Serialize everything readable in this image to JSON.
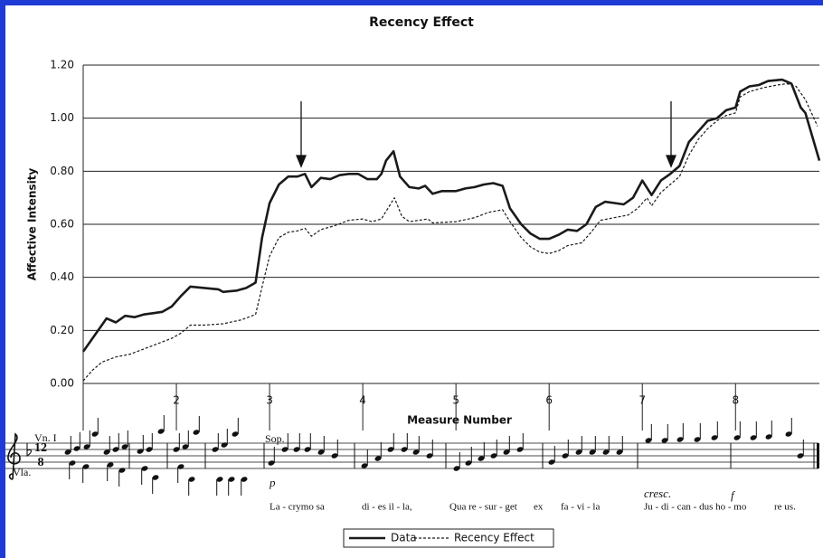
{
  "chart_data": {
    "type": "line",
    "title": "Recency Effect",
    "x_label": "Measure Number",
    "y_label": "Affective Intensity",
    "xlim": [
      1,
      8.9
    ],
    "xticks": [
      2,
      3,
      4,
      5,
      6,
      7,
      8
    ],
    "ylim": [
      0,
      1.2
    ],
    "yticks": [
      {
        "value": 0,
        "label": "0.00"
      },
      {
        "value": 0.2,
        "label": "0.20"
      },
      {
        "value": 0.4,
        "label": "0.40"
      },
      {
        "value": 0.6,
        "label": "0.60"
      },
      {
        "value": 0.8,
        "label": "0.80"
      },
      {
        "value": 1.0,
        "label": "1.00"
      },
      {
        "value": 1.2,
        "label": "1.20"
      }
    ],
    "grid": true,
    "legend": "bottom",
    "series": [
      {
        "name": "Data",
        "color": "#1a1a1a",
        "style": "solid",
        "x": [
          1.0,
          1.1,
          1.2,
          1.25,
          1.35,
          1.45,
          1.55,
          1.65,
          1.75,
          1.85,
          1.95,
          2.05,
          2.15,
          2.3,
          2.45,
          2.5,
          2.65,
          2.75,
          2.85,
          2.92,
          3.0,
          3.1,
          3.2,
          3.3,
          3.38,
          3.45,
          3.55,
          3.65,
          3.75,
          3.85,
          3.95,
          4.05,
          4.15,
          4.2,
          4.25,
          4.33,
          4.4,
          4.5,
          4.6,
          4.67,
          4.75,
          4.85,
          5.0,
          5.1,
          5.2,
          5.3,
          5.4,
          5.5,
          5.58,
          5.7,
          5.8,
          5.9,
          6.0,
          6.1,
          6.2,
          6.3,
          6.4,
          6.5,
          6.6,
          6.7,
          6.8,
          6.9,
          7.0,
          7.1,
          7.2,
          7.3,
          7.4,
          7.5,
          7.6,
          7.7,
          7.8,
          7.9,
          8.0,
          8.05,
          8.15,
          8.25,
          8.35,
          8.5,
          8.6,
          8.7,
          8.75,
          8.9
        ],
        "values": [
          0.12,
          0.17,
          0.22,
          0.245,
          0.23,
          0.255,
          0.25,
          0.26,
          0.265,
          0.27,
          0.29,
          0.33,
          0.365,
          0.36,
          0.355,
          0.345,
          0.35,
          0.36,
          0.38,
          0.55,
          0.68,
          0.75,
          0.78,
          0.78,
          0.79,
          0.74,
          0.775,
          0.77,
          0.785,
          0.79,
          0.79,
          0.77,
          0.77,
          0.79,
          0.84,
          0.875,
          0.78,
          0.74,
          0.735,
          0.745,
          0.715,
          0.725,
          0.725,
          0.735,
          0.74,
          0.75,
          0.755,
          0.745,
          0.66,
          0.6,
          0.565,
          0.545,
          0.545,
          0.56,
          0.58,
          0.575,
          0.6,
          0.665,
          0.685,
          0.68,
          0.675,
          0.7,
          0.765,
          0.71,
          0.765,
          0.79,
          0.82,
          0.91,
          0.95,
          0.99,
          1.0,
          1.03,
          1.04,
          1.1,
          1.12,
          1.125,
          1.14,
          1.145,
          1.13,
          1.04,
          1.02,
          0.84
        ]
      },
      {
        "name": "Recency Effect",
        "color": "#1a1a1a",
        "style": "dashed",
        "x": [
          1.0,
          1.1,
          1.2,
          1.35,
          1.5,
          1.65,
          1.8,
          1.95,
          2.05,
          2.15,
          2.3,
          2.5,
          2.7,
          2.85,
          2.93,
          3.0,
          3.1,
          3.2,
          3.3,
          3.38,
          3.45,
          3.55,
          3.7,
          3.85,
          4.0,
          4.1,
          4.2,
          4.27,
          4.34,
          4.42,
          4.5,
          4.6,
          4.7,
          4.75,
          5.0,
          5.2,
          5.35,
          5.5,
          5.58,
          5.7,
          5.8,
          5.9,
          6.0,
          6.1,
          6.2,
          6.35,
          6.45,
          6.55,
          6.7,
          6.85,
          6.95,
          7.05,
          7.1,
          7.2,
          7.3,
          7.4,
          7.5,
          7.6,
          7.7,
          7.8,
          7.9,
          8.0,
          8.05,
          8.15,
          8.3,
          8.45,
          8.55,
          8.65,
          8.75,
          8.88
        ],
        "values": [
          0.01,
          0.05,
          0.08,
          0.1,
          0.11,
          0.13,
          0.15,
          0.17,
          0.19,
          0.22,
          0.22,
          0.225,
          0.24,
          0.26,
          0.38,
          0.48,
          0.55,
          0.57,
          0.575,
          0.585,
          0.555,
          0.58,
          0.595,
          0.615,
          0.62,
          0.61,
          0.62,
          0.66,
          0.7,
          0.63,
          0.61,
          0.615,
          0.62,
          0.605,
          0.61,
          0.625,
          0.645,
          0.655,
          0.61,
          0.55,
          0.515,
          0.495,
          0.49,
          0.5,
          0.52,
          0.53,
          0.57,
          0.615,
          0.625,
          0.635,
          0.66,
          0.7,
          0.67,
          0.72,
          0.75,
          0.78,
          0.86,
          0.92,
          0.96,
          0.99,
          1.01,
          1.02,
          1.08,
          1.1,
          1.115,
          1.125,
          1.13,
          1.12,
          1.07,
          0.97
        ]
      }
    ]
  },
  "score": {
    "violin": "Vn. I",
    "viola": "Vla.",
    "soprano": "Sop.",
    "time_top": "12",
    "time_bottom": "8",
    "dynamics": [
      "p",
      "cresc.",
      "f"
    ],
    "lyrics": [
      "La - crymo sa",
      "di - es il - la,",
      "Qua re - sur - get",
      "ex",
      "fa - vi - la",
      "Ju - di - can - dus ho - mo",
      "re us."
    ]
  }
}
